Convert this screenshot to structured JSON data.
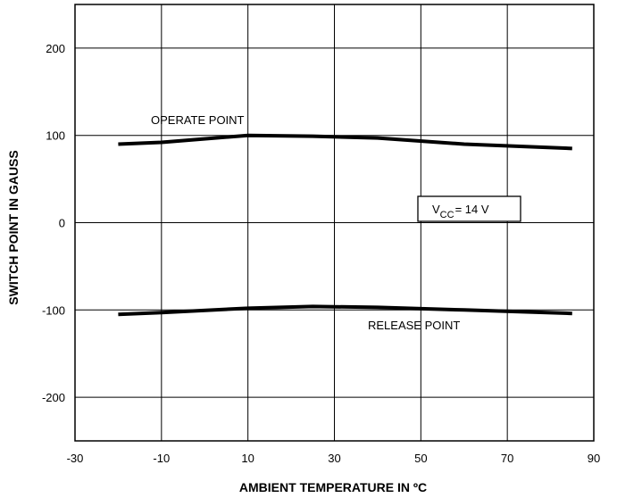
{
  "chart_data": {
    "type": "line",
    "title": "",
    "xlabel": "AMBIENT TEMPERATURE IN ºC",
    "ylabel": "SWITCH POINT IN GAUSS",
    "xlim": [
      -30,
      90
    ],
    "ylim": [
      -250,
      250
    ],
    "xticks": [
      -30,
      -10,
      10,
      30,
      50,
      70,
      90
    ],
    "yticks": [
      -200,
      -100,
      0,
      100,
      200
    ],
    "x_gridlines": [
      -30,
      -10,
      10,
      30,
      50,
      70,
      90
    ],
    "y_gridlines": [
      -250,
      -200,
      -100,
      0,
      100,
      200,
      250
    ],
    "grid": true,
    "series": [
      {
        "name": "OPERATE POINT",
        "x": [
          -20,
          -10,
          10,
          25,
          40,
          60,
          85
        ],
        "y": [
          90,
          92,
          100,
          99,
          97,
          90,
          85
        ]
      },
      {
        "name": "RELEASE POINT",
        "x": [
          -20,
          -10,
          10,
          25,
          40,
          60,
          85
        ],
        "y": [
          -105,
          -103,
          -98,
          -96,
          -97,
          -100,
          -104
        ]
      }
    ],
    "annotations": {
      "operate_label": "OPERATE POINT",
      "release_label": "RELEASE POINT",
      "vcc_main": "V",
      "vcc_sub": "CC",
      "vcc_rest": "= 14 V"
    }
  }
}
